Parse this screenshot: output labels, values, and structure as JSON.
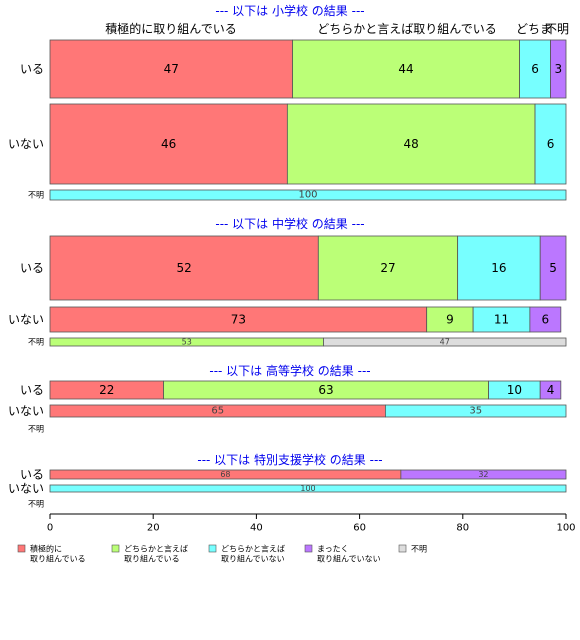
{
  "chart_data": {
    "type": "bar",
    "orientation": "horizontal",
    "stacked": true,
    "percent": true,
    "xlim": [
      0,
      100
    ],
    "x_ticks": [
      "0",
      "20",
      "40",
      "60",
      "80",
      "100"
    ],
    "grid": false,
    "legend_position": "bottom-left",
    "column_headers": [
      "積極的に取り組んでいる",
      "どちらかと言えば取り組んでいる",
      "どちま",
      "不明"
    ],
    "categories": [
      {
        "key": "k1",
        "legend": [
          "積極的に",
          "取り組んでいる"
        ],
        "color": "#ff7777"
      },
      {
        "key": "k2",
        "legend": [
          "どちらかと言えば",
          "取り組んでいる"
        ],
        "color": "#bbff77"
      },
      {
        "key": "k3",
        "legend": [
          "どちらかと言えば",
          "取り組んでいない"
        ],
        "color": "#77ffff"
      },
      {
        "key": "k4",
        "legend": [
          "まったく",
          "取り組んでいない"
        ],
        "color": "#bb77ff"
      },
      {
        "key": "k5",
        "legend": [
          "不明"
        ],
        "color": "#dddddd"
      }
    ],
    "panels": [
      {
        "title": "--- 以下は 小学校 の結果 ---",
        "rows": [
          {
            "label": "いる",
            "values": [
              47,
              44,
              6,
              3,
              0
            ]
          },
          {
            "label": "いない",
            "values": [
              46,
              48,
              6,
              0,
              0
            ]
          },
          {
            "label": "不明",
            "values": [
              0,
              0,
              100,
              0,
              0
            ]
          }
        ]
      },
      {
        "title": "--- 以下は 中学校 の結果 ---",
        "rows": [
          {
            "label": "いる",
            "values": [
              52,
              27,
              16,
              5,
              0
            ]
          },
          {
            "label": "いない",
            "values": [
              73,
              9,
              11,
              6,
              0
            ]
          },
          {
            "label": "不明",
            "values": [
              0,
              53,
              0,
              0,
              47
            ]
          }
        ]
      },
      {
        "title": "--- 以下は 高等学校 の結果 ---",
        "rows": [
          {
            "label": "いる",
            "values": [
              22,
              63,
              10,
              4,
              0
            ]
          },
          {
            "label": "いない",
            "values": [
              65,
              0,
              35,
              0,
              0
            ]
          },
          {
            "label": "不明",
            "values": []
          }
        ]
      },
      {
        "title": "--- 以下は 特別支援学校 の結果 ---",
        "rows": [
          {
            "label": "いる",
            "values": [
              68,
              0,
              0,
              32,
              0
            ]
          },
          {
            "label": "いない",
            "values": [
              0,
              0,
              100,
              0,
              0
            ]
          },
          {
            "label": "不明",
            "values": []
          }
        ]
      }
    ]
  }
}
